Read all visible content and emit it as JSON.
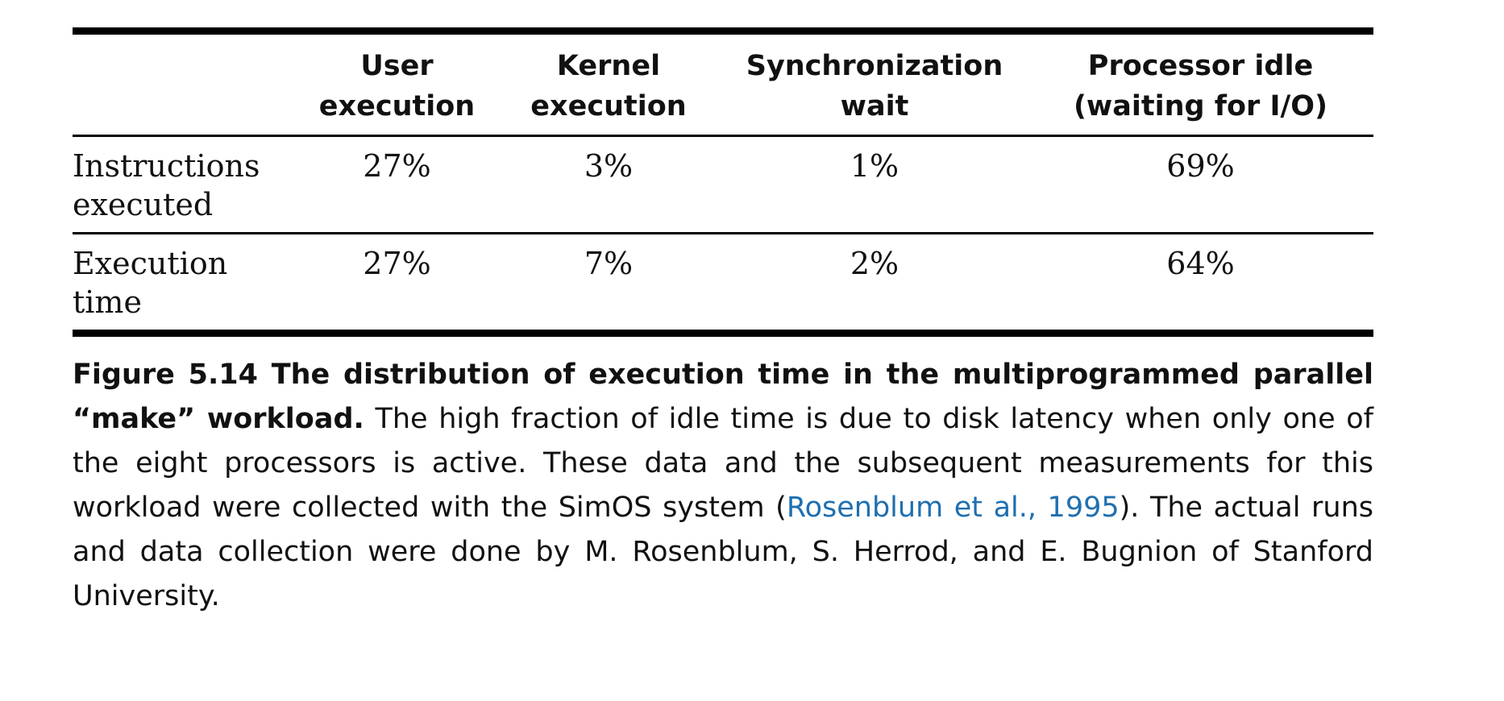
{
  "table": {
    "headers": [
      "",
      "User execution",
      "Kernel execution",
      "Synchronization wait",
      "Processor idle (waiting for I/O)"
    ],
    "rows": [
      {
        "label": "Instructions executed",
        "values": [
          "27%",
          "3%",
          "1%",
          "69%"
        ]
      },
      {
        "label": "Execution time",
        "values": [
          "27%",
          "7%",
          "2%",
          "64%"
        ]
      }
    ]
  },
  "caption": {
    "figure_title": "Figure 5.14 The distribution of execution time in the multiprogrammed parallel “make” workload.",
    "text_before_link": " The high fraction of idle time is due to disk latency when only one of the eight processors is active. These data and the subsequent measurements for this workload were collected with the SimOS system (",
    "link_text": "Rosenblum et al., 1995",
    "text_after_link": "). The actual runs and data collection were done by M. Rosenblum, S. Herrod, and E. Bugnion of Stanford University."
  },
  "colors": {
    "text": "#111111",
    "link": "#1f6fb0",
    "rule": "#000000"
  }
}
